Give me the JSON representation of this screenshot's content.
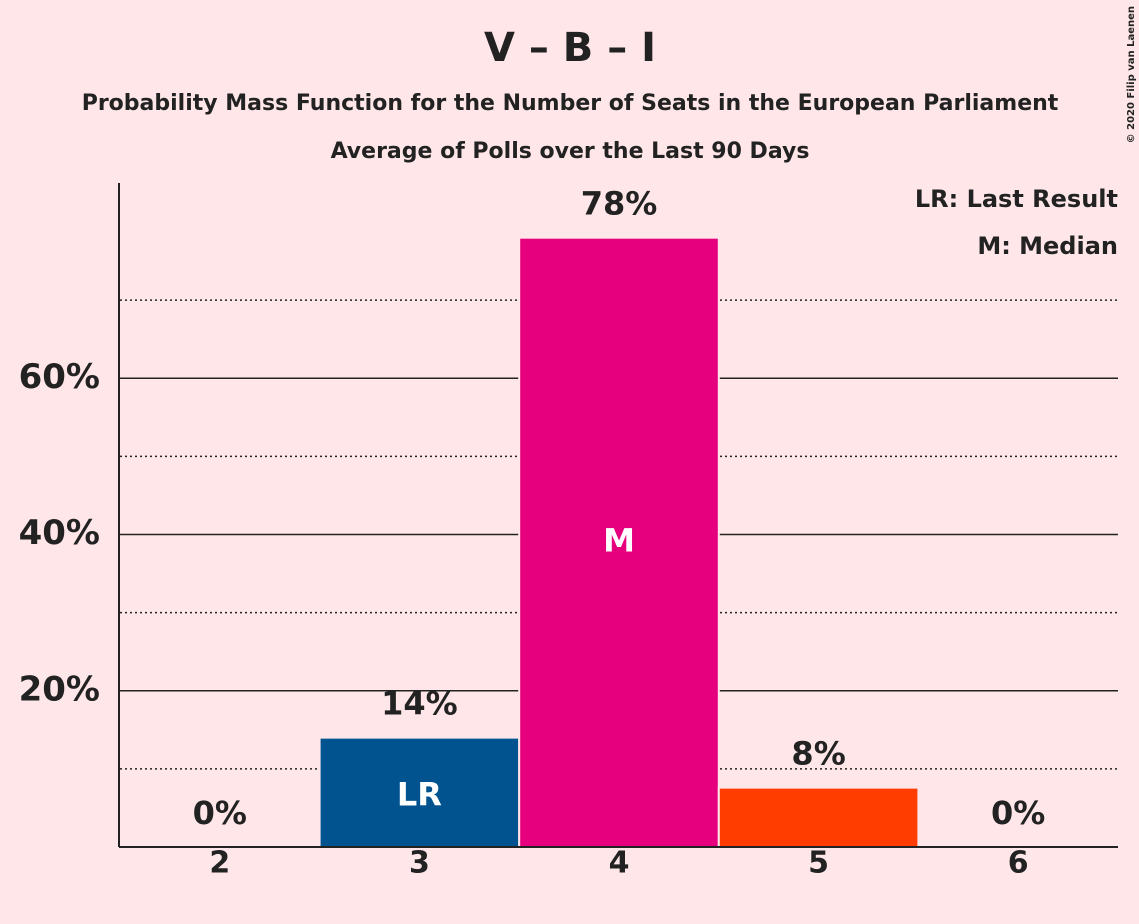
{
  "chart_data": {
    "type": "bar",
    "title": "V – B – I",
    "subtitle": "Probability Mass Function for the Number of Seats in the European Parliament",
    "subtitle2": "Average of Polls over the Last 90 Days",
    "copyright": "© 2020 Filip van Laenen",
    "legend": [
      "LR: Last Result",
      "M: Median"
    ],
    "categories": [
      "2",
      "3",
      "4",
      "5",
      "6"
    ],
    "values": [
      0,
      14,
      78,
      7.6,
      0
    ],
    "value_labels": [
      "0%",
      "14%",
      "78%",
      "8%",
      "0%"
    ],
    "bar_labels": [
      null,
      "LR",
      "M",
      null,
      null
    ],
    "colors": [
      "#e6007e",
      "#00538f",
      "#e6007e",
      "#ff3d00",
      "#e6007e"
    ],
    "ylim": [
      0,
      85
    ],
    "yticks": [
      {
        "value": 20,
        "label": "20%"
      },
      {
        "value": 40,
        "label": "40%"
      },
      {
        "value": 60,
        "label": "60%"
      }
    ],
    "minor_yticks": [
      10,
      30,
      50,
      70
    ],
    "grid": true
  }
}
